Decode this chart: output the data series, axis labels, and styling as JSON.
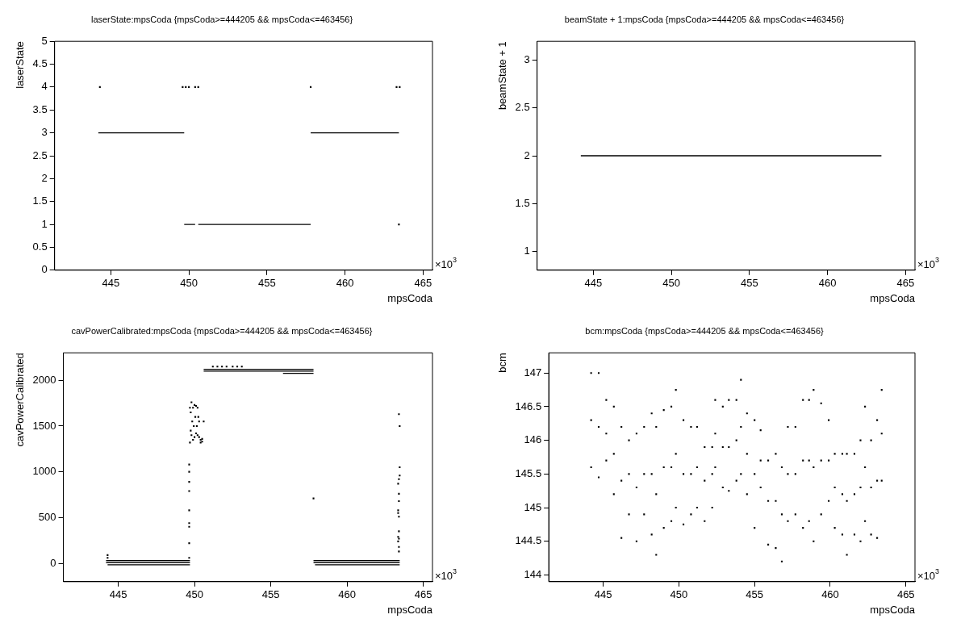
{
  "chart_data": [
    {
      "type": "scatter",
      "title": "laserState:mpsCoda {mpsCoda>=444205 && mpsCoda<=463456}",
      "xlabel": "mpsCoda",
      "ylabel": "laserState",
      "annotations": [
        "×10$^{3}$"
      ],
      "xlim": [
        441.4,
        465.6
      ],
      "xticks": [
        445,
        450,
        455,
        460,
        465
      ],
      "ylim": [
        0,
        5
      ],
      "yticks": [
        0,
        0.5,
        1,
        1.5,
        2,
        2.5,
        3,
        3.5,
        4,
        4.5,
        5
      ],
      "grid": false,
      "legend": false,
      "marker": "square",
      "series": [
        {
          "type": "line",
          "marker": "none",
          "color": "#000000",
          "x": [
            444.2,
            449.7
          ],
          "values": [
            3,
            3
          ]
        },
        {
          "type": "line",
          "marker": "none",
          "color": "#000000",
          "x": [
            449.7,
            450.4
          ],
          "values": [
            1,
            1
          ]
        },
        {
          "type": "line",
          "marker": "none",
          "color": "#000000",
          "x": [
            450.6,
            457.8
          ],
          "values": [
            1,
            1
          ]
        },
        {
          "type": "line",
          "marker": "none",
          "color": "#000000",
          "x": [
            457.8,
            463.45
          ],
          "values": [
            3,
            3
          ]
        },
        {
          "type": "scatter",
          "color": "#000000",
          "x": [
            444.3,
            449.6,
            449.8,
            450.0,
            450.4,
            450.6,
            457.8,
            463.3,
            463.5,
            463.45
          ],
          "values": [
            4,
            4,
            4,
            4,
            4,
            4,
            4,
            4,
            4,
            1
          ]
        }
      ]
    },
    {
      "type": "scatter",
      "title": "beamState + 1:mpsCoda {mpsCoda>=444205 && mpsCoda<=463456}",
      "xlabel": "mpsCoda",
      "ylabel": "beamState + 1",
      "annotations": [
        "×10$^{3}$"
      ],
      "xlim": [
        441.4,
        465.6
      ],
      "xticks": [
        445,
        450,
        455,
        460,
        465
      ],
      "ylim": [
        0.8,
        3.2
      ],
      "yticks": [
        1,
        1.5,
        2,
        2.5,
        3
      ],
      "grid": false,
      "legend": false,
      "series": [
        {
          "type": "line",
          "marker": "none",
          "color": "#000000",
          "x": [
            444.2,
            463.45
          ],
          "values": [
            2,
            2
          ]
        }
      ]
    },
    {
      "type": "scatter",
      "title": "cavPowerCalibrated:mpsCoda {mpsCoda>=444205 && mpsCoda<=463456}",
      "xlabel": "mpsCoda",
      "ylabel": "cavPowerCalibrated",
      "annotations": [
        "×10$^{3}$"
      ],
      "xlim": [
        441.4,
        465.6
      ],
      "xticks": [
        445,
        450,
        455,
        460,
        465
      ],
      "ylim": [
        -200,
        2300
      ],
      "yticks": [
        0,
        500,
        1000,
        1500,
        2000
      ],
      "grid": false,
      "legend": false,
      "marker": "square",
      "series": [
        {
          "type": "line",
          "marker": "none",
          "color": "#000000",
          "x": [
            444.2,
            449.7
          ],
          "values": [
            30,
            30
          ]
        },
        {
          "type": "line",
          "marker": "none",
          "color": "#000000",
          "x": [
            444.2,
            449.7
          ],
          "values": [
            10,
            10
          ]
        },
        {
          "type": "line",
          "marker": "none",
          "color": "#000000",
          "x": [
            444.3,
            449.7
          ],
          "values": [
            -15,
            -15
          ]
        },
        {
          "type": "line",
          "marker": "none",
          "color": "#000000",
          "x": [
            457.8,
            463.45
          ],
          "values": [
            30,
            30
          ]
        },
        {
          "type": "line",
          "marker": "none",
          "color": "#000000",
          "x": [
            457.8,
            463.45
          ],
          "values": [
            10,
            10
          ]
        },
        {
          "type": "line",
          "marker": "none",
          "color": "#000000",
          "x": [
            457.9,
            463.45
          ],
          "values": [
            -15,
            -15
          ]
        },
        {
          "type": "line",
          "marker": "none",
          "color": "#000000",
          "x": [
            450.6,
            457.8
          ],
          "values": [
            2120,
            2120
          ]
        },
        {
          "type": "line",
          "marker": "none",
          "color": "#000000",
          "x": [
            450.6,
            457.8
          ],
          "values": [
            2100,
            2100
          ]
        },
        {
          "type": "line",
          "marker": "none",
          "color": "#000000",
          "x": [
            455.8,
            457.8
          ],
          "values": [
            2075,
            2075
          ]
        },
        {
          "type": "scatter",
          "color": "#000000",
          "x": [
            444.3,
            444.3,
            451.2,
            451.5,
            451.8,
            452.1,
            452.5,
            452.8,
            453.1,
            449.65,
            449.65,
            449.65,
            449.65,
            449.65,
            449.65,
            449.65,
            449.65,
            449.65,
            449.7,
            449.7,
            449.75,
            449.75,
            449.8,
            449.8,
            449.85,
            449.9,
            449.9,
            449.95,
            450.0,
            450.0,
            450.05,
            450.1,
            450.1,
            450.15,
            450.2,
            450.2,
            450.25,
            450.3,
            450.3,
            450.4,
            450.4,
            450.5,
            450.5,
            450.6,
            457.8,
            463.4,
            463.45,
            463.45,
            463.45,
            463.4,
            463.35,
            463.4,
            463.4,
            463.35,
            463.35,
            463.4,
            463.4,
            463.35,
            463.4,
            463.35,
            463.4,
            463.4
          ],
          "values": [
            90,
            60,
            2150,
            2150,
            2150,
            2150,
            2150,
            2150,
            2150,
            1080,
            1000,
            890,
            790,
            580,
            440,
            400,
            220,
            60,
            1320,
            1700,
            1450,
            1650,
            1760,
            1400,
            1550,
            1350,
            1700,
            1500,
            1730,
            1380,
            1600,
            1720,
            1420,
            1500,
            1700,
            1400,
            1600,
            1550,
            1380,
            1350,
            1320,
            1330,
            1360,
            1550,
            710,
            1630,
            1500,
            1050,
            960,
            920,
            870,
            760,
            680,
            580,
            550,
            510,
            350,
            290,
            270,
            240,
            180,
            130
          ]
        }
      ]
    },
    {
      "type": "scatter",
      "title": "bcm:mpsCoda {mpsCoda>=444205 && mpsCoda<=463456}",
      "xlabel": "mpsCoda",
      "ylabel": "bcm",
      "annotations": [
        "×10$^{3}$"
      ],
      "xlim": [
        441.4,
        465.6
      ],
      "xticks": [
        445,
        450,
        455,
        460,
        465
      ],
      "ylim": [
        143.9,
        147.3
      ],
      "yticks": [
        144,
        144.5,
        145,
        145.5,
        146,
        146.5,
        147
      ],
      "grid": false,
      "legend": false,
      "marker": "square",
      "series": [
        {
          "type": "scatter",
          "color": "#000000",
          "x": [
            444.2,
            444.2,
            444.2,
            444.7,
            444.7,
            444.7,
            445.2,
            445.2,
            445.2,
            445.7,
            445.7,
            445.7,
            446.2,
            446.2,
            446.2,
            446.7,
            446.7,
            446.7,
            447.2,
            447.2,
            447.2,
            447.7,
            447.7,
            447.7,
            448.2,
            448.2,
            448.2,
            448.5,
            448.5,
            448.5,
            449.0,
            449.0,
            449.0,
            449.5,
            449.5,
            449.5,
            449.8,
            449.8,
            449.8,
            450.3,
            450.3,
            450.3,
            450.8,
            450.8,
            450.8,
            451.2,
            451.2,
            451.2,
            451.7,
            451.7,
            451.7,
            452.2,
            452.2,
            452.2,
            452.4,
            452.4,
            452.4,
            452.9,
            452.9,
            452.9,
            453.3,
            453.3,
            453.3,
            453.8,
            453.8,
            453.8,
            454.1,
            454.1,
            454.1,
            454.5,
            454.5,
            454.5,
            455.0,
            455.0,
            455.0,
            455.4,
            455.4,
            455.4,
            455.9,
            455.9,
            455.9,
            456.4,
            456.4,
            456.4,
            456.8,
            456.8,
            456.8,
            457.2,
            457.2,
            457.2,
            457.7,
            457.7,
            457.7,
            458.2,
            458.2,
            458.2,
            458.6,
            458.6,
            458.6,
            458.9,
            458.9,
            458.9,
            459.4,
            459.4,
            459.4,
            459.9,
            459.9,
            459.9,
            460.3,
            460.3,
            460.3,
            460.8,
            460.8,
            460.8,
            461.1,
            461.1,
            461.1,
            461.6,
            461.6,
            461.6,
            462.0,
            462.0,
            462.0,
            462.3,
            462.3,
            462.3,
            462.7,
            462.7,
            462.7,
            463.1,
            463.1,
            463.1,
            463.4,
            463.4,
            463.4
          ],
          "values": [
            147.0,
            146.3,
            145.6,
            147.0,
            146.2,
            145.45,
            146.6,
            146.1,
            145.7,
            146.5,
            145.8,
            145.2,
            146.2,
            145.4,
            144.55,
            146.0,
            145.5,
            144.9,
            146.1,
            145.3,
            144.5,
            146.2,
            145.5,
            144.9,
            146.4,
            145.5,
            144.6,
            146.2,
            145.2,
            144.3,
            146.45,
            145.6,
            144.7,
            146.5,
            145.6,
            144.8,
            146.75,
            145.8,
            145.0,
            146.3,
            145.5,
            144.75,
            146.2,
            145.5,
            144.9,
            146.2,
            145.6,
            145.0,
            145.9,
            145.4,
            144.8,
            145.9,
            145.5,
            145.0,
            146.6,
            146.1,
            145.6,
            146.5,
            145.9,
            145.3,
            146.6,
            145.9,
            145.25,
            146.6,
            146.0,
            145.4,
            146.9,
            146.2,
            145.5,
            146.4,
            145.8,
            145.2,
            146.3,
            145.5,
            144.7,
            146.15,
            145.7,
            145.3,
            145.7,
            145.1,
            144.45,
            145.8,
            145.1,
            144.4,
            145.6,
            144.9,
            144.2,
            146.2,
            145.5,
            144.8,
            146.2,
            145.5,
            144.9,
            146.6,
            145.7,
            144.7,
            146.6,
            145.7,
            144.8,
            146.75,
            145.6,
            144.5,
            146.55,
            145.7,
            144.9,
            146.3,
            145.7,
            145.1,
            145.8,
            145.3,
            144.7,
            145.8,
            145.2,
            144.6,
            145.8,
            145.1,
            144.3,
            145.8,
            145.2,
            144.6,
            146.0,
            145.3,
            144.5,
            146.5,
            145.6,
            144.8,
            146.0,
            145.3,
            144.6,
            146.3,
            145.4,
            144.55,
            146.75,
            146.1,
            145.4
          ]
        }
      ]
    }
  ]
}
